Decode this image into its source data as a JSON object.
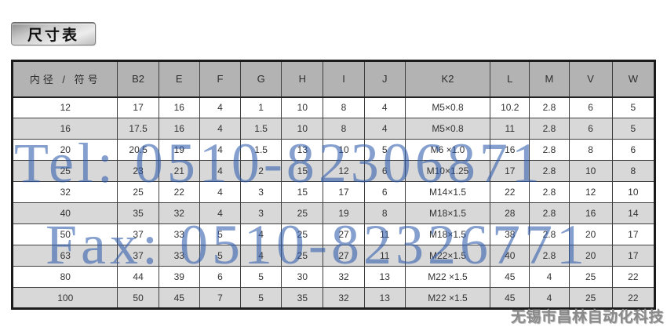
{
  "title": "尺寸表",
  "watermarks": {
    "tel": "Tel: 0510-82306871",
    "fax": "Fax: 0510-82326771",
    "company": "无锡市昌林自动化科技",
    "blue_color": "#7e9bd0",
    "gray_color": "#8a8a8a"
  },
  "table": {
    "columns": [
      "内径 / 符号",
      "B2",
      "E",
      "F",
      "G",
      "H",
      "I",
      "J",
      "K2",
      "L",
      "M",
      "V",
      "W"
    ],
    "rows": [
      [
        "12",
        "17",
        "16",
        "4",
        "1",
        "10",
        "8",
        "4",
        "M5×0.8",
        "10.2",
        "2.8",
        "6",
        "5"
      ],
      [
        "16",
        "17.5",
        "16",
        "4",
        "1.5",
        "10",
        "8",
        "4",
        "M5×0.8",
        "11",
        "2.8",
        "6",
        "5"
      ],
      [
        "20",
        "20.5",
        "19",
        "4",
        "1.5",
        "13",
        "10",
        "5",
        "M6 ×1.0",
        "16",
        "2.8",
        "8",
        "6"
      ],
      [
        "25",
        "23",
        "21",
        "4",
        "2",
        "15",
        "12",
        "6",
        "M10×1.25",
        "17",
        "2.8",
        "10",
        "8"
      ],
      [
        "32",
        "25",
        "22",
        "4",
        "3",
        "15",
        "17",
        "6",
        "M14×1.5",
        "22",
        "2.8",
        "12",
        "10"
      ],
      [
        "40",
        "35",
        "32",
        "4",
        "3",
        "25",
        "19",
        "8",
        "M18×1.5",
        "28",
        "2.8",
        "16",
        "14"
      ],
      [
        "50",
        "37",
        "33",
        "5",
        "4",
        "25",
        "27",
        "11",
        "M18×1.5",
        "38",
        "2.8",
        "20",
        "17"
      ],
      [
        "63",
        "37",
        "33",
        "5",
        "4",
        "25",
        "27",
        "11",
        "M22×1.5",
        "40",
        "2.8",
        "20",
        "17"
      ],
      [
        "80",
        "44",
        "39",
        "6",
        "5",
        "30",
        "32",
        "13",
        "M22 ×1.5",
        "45",
        "4",
        "25",
        "22"
      ],
      [
        "100",
        "50",
        "45",
        "7",
        "5",
        "35",
        "32",
        "13",
        "M22 ×1.5",
        "45",
        "4",
        "25",
        "22"
      ]
    ]
  }
}
